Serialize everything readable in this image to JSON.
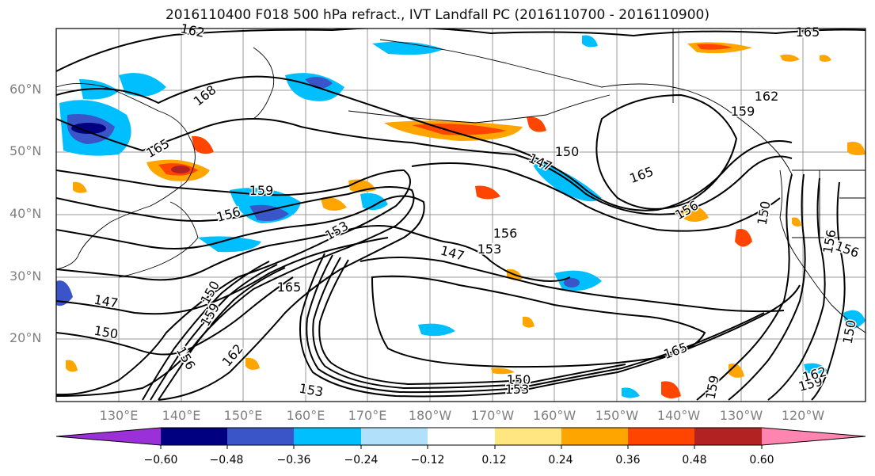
{
  "title": "2016110400 F018 500 hPa refract., IVT Landfall PC (2016110700 - 2016110900)",
  "lat_ticks": [
    "60°N",
    "50°N",
    "40°N",
    "30°N",
    "20°N"
  ],
  "lon_ticks": [
    "130°E",
    "140°E",
    "150°E",
    "160°E",
    "170°E",
    "180°W",
    "170°W",
    "160°W",
    "150°W",
    "140°W",
    "130°W",
    "120°W"
  ],
  "contour_labels": [
    "162",
    "168",
    "165",
    "159",
    "156",
    "150",
    "153",
    "147",
    "150",
    "165",
    "162",
    "159",
    "156",
    "153",
    "150",
    "147",
    "165",
    "162",
    "159",
    "156",
    "156",
    "153",
    "150",
    "147",
    "150",
    "153",
    "159",
    "162",
    "165",
    "156",
    "150",
    "165",
    "159",
    "156"
  ],
  "colorbar": {
    "tick_labels": [
      "−0.60",
      "−0.48",
      "−0.36",
      "−0.24",
      "−0.12",
      "0.12",
      "0.24",
      "0.36",
      "0.48",
      "0.60"
    ],
    "colors": [
      "#9b30d9",
      "#000080",
      "#3a55c8",
      "#00bfff",
      "#b0e0fa",
      "#ffffff",
      "#ffe680",
      "#ffa500",
      "#ff4500",
      "#b22222",
      "#ff85b0"
    ]
  },
  "map_colors": {
    "contour": "#000000",
    "coast": "#000000",
    "grid": "#999999",
    "frame": "#000000"
  }
}
